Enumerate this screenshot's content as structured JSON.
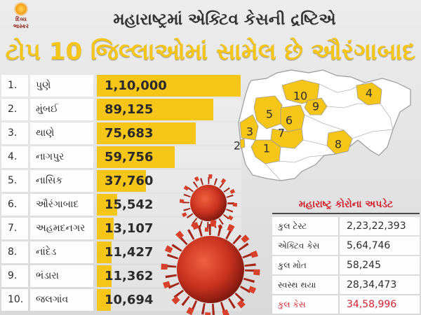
{
  "logo": {
    "line1": "દિવ્ય",
    "line2": "ભાસ્કર"
  },
  "header": {
    "line1": "મહારાષ્ટ્રમાં એક્ટિવ કેસની દ્રષ્ટિએ",
    "line2": "ટોપ 10 જિલ્લાઓમાં સામેલ છે ઔરંગાબાદ"
  },
  "chart_data": {
    "type": "bar",
    "orientation": "horizontal",
    "ranks": [
      "1.",
      "2.",
      "3.",
      "4.",
      "5.",
      "6.",
      "7.",
      "8.",
      "9.",
      "10."
    ],
    "categories": [
      "પુણે",
      "મુંબઈ",
      "થાણે",
      "નાગપુર",
      "નાસિક",
      "ઔરંગાબાદ",
      "અહમદનગર",
      "નાંદેડ",
      "ભંડારા",
      "જલગાંવ"
    ],
    "values": [
      110000,
      89125,
      75683,
      59756,
      37760,
      15542,
      13107,
      11427,
      11362,
      10694
    ],
    "value_labels": [
      "1,10,000",
      "89,125",
      "75,683",
      "59,756",
      "37,760",
      "15,542",
      "13,107",
      "11,427",
      "11,362",
      "10,694"
    ]
  },
  "map": {
    "labels": [
      "10",
      "4",
      "9",
      "5",
      "6",
      "3",
      "7",
      "2",
      "1",
      "8"
    ]
  },
  "update_table": {
    "title": "મહારાષ્ટ્ર કોરોના અપડેટ",
    "rows": [
      {
        "label": "કુલ ટેસ્ટ",
        "value": "2,23,22,393"
      },
      {
        "label": "એક્ટિવ કેસ",
        "value": "5,64,746"
      },
      {
        "label": "કુલ મોત",
        "value": "58,245"
      },
      {
        "label": "સ્વસ્થ થયા",
        "value": "28,34,473"
      },
      {
        "label": "કુલ કેસ",
        "value": "34,58,996"
      }
    ]
  },
  "colors": {
    "bar": "#f5c518",
    "accent_yellow": "#f5c518",
    "highlight_red": "#d4212f",
    "map_district": "#f5c518"
  }
}
